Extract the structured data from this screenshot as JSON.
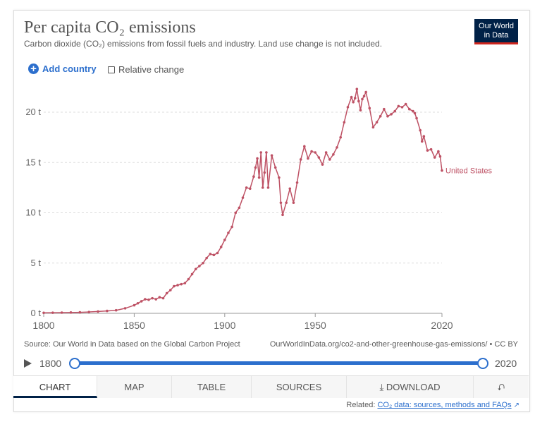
{
  "header": {
    "title": "Per capita CO₂ emissions",
    "subtitle": "Carbon dioxide (CO₂) emissions from fossil fuels and industry. Land use change is not included.",
    "logo_line1": "Our World",
    "logo_line2": "in Data"
  },
  "controls": {
    "add_country": "Add country",
    "relative_change": "Relative change"
  },
  "footer": {
    "source": "Source: Our World in Data based on the Global Carbon Project",
    "url": "OurWorldInData.org/co2-and-other-greenhouse-gas-emissions/ • CC BY",
    "related_prefix": "Related:",
    "related_link": "CO₂ data: sources, methods and FAQs"
  },
  "timeline": {
    "start": "1800",
    "end": "2020"
  },
  "tabs": [
    "Chart",
    "Map",
    "Table",
    "Sources",
    "Download",
    ""
  ],
  "colors": {
    "series": "#be5265",
    "accent": "#2c6fcd",
    "logo_bg": "#002147",
    "logo_bar": "#ce261e"
  },
  "chart_data": {
    "type": "line",
    "title": "Per capita CO₂ emissions",
    "xlim": [
      1800,
      2020
    ],
    "ylim": [
      0,
      21
    ],
    "x_ticks": [
      "1800",
      "1850",
      "1900",
      "1950",
      "2020"
    ],
    "x_tick_values": [
      1800,
      1850,
      1900,
      1950,
      2020
    ],
    "y_ticks": [
      "0 t",
      "5 t",
      "10 t",
      "15 t",
      "20 t"
    ],
    "y_tick_values": [
      0,
      5,
      10,
      15,
      20
    ],
    "grid": "horizontal dashed",
    "series": [
      {
        "name": "United States",
        "x": [
          1800,
          1805,
          1810,
          1815,
          1820,
          1825,
          1830,
          1835,
          1840,
          1845,
          1850,
          1852,
          1854,
          1856,
          1858,
          1860,
          1862,
          1864,
          1866,
          1868,
          1870,
          1872,
          1874,
          1876,
          1878,
          1880,
          1882,
          1884,
          1886,
          1888,
          1890,
          1892,
          1894,
          1896,
          1898,
          1900,
          1902,
          1904,
          1906,
          1908,
          1910,
          1912,
          1914,
          1916,
          1917,
          1918,
          1919,
          1920,
          1921,
          1922,
          1923,
          1924,
          1926,
          1928,
          1930,
          1931,
          1932,
          1934,
          1936,
          1938,
          1940,
          1942,
          1944,
          1946,
          1948,
          1950,
          1952,
          1954,
          1956,
          1958,
          1960,
          1962,
          1964,
          1966,
          1968,
          1970,
          1971,
          1972,
          1973,
          1974,
          1975,
          1976,
          1977,
          1978,
          1980,
          1982,
          1984,
          1986,
          1988,
          1990,
          1992,
          1994,
          1996,
          1998,
          2000,
          2002,
          2004,
          2005,
          2006,
          2008,
          2009,
          2010,
          2012,
          2014,
          2016,
          2018,
          2019,
          2020
        ],
        "y": [
          0.05,
          0.06,
          0.07,
          0.08,
          0.1,
          0.13,
          0.18,
          0.24,
          0.3,
          0.5,
          0.8,
          1.0,
          1.2,
          1.4,
          1.35,
          1.5,
          1.4,
          1.6,
          1.5,
          2.0,
          2.3,
          2.7,
          2.8,
          2.9,
          3.0,
          3.4,
          3.9,
          4.4,
          4.7,
          5.0,
          5.5,
          5.9,
          5.8,
          6.0,
          6.6,
          7.3,
          8.0,
          8.6,
          10.0,
          10.5,
          11.5,
          12.5,
          12.4,
          13.6,
          14.5,
          15.4,
          13.5,
          16.0,
          12.5,
          14.0,
          16.0,
          12.5,
          15.7,
          14.5,
          13.5,
          11.0,
          9.8,
          11.0,
          12.4,
          11.0,
          13.0,
          15.3,
          16.6,
          15.4,
          16.1,
          16.0,
          15.5,
          14.8,
          16.0,
          15.3,
          15.8,
          16.5,
          17.5,
          19.0,
          20.5,
          21.5,
          21.0,
          21.4,
          22.3,
          21.1,
          20.2,
          21.3,
          21.6,
          22.0,
          20.4,
          18.5,
          19.0,
          19.6,
          20.3,
          19.6,
          19.8,
          20.1,
          20.6,
          20.5,
          20.8,
          20.3,
          20.1,
          19.9,
          19.4,
          18.2,
          17.1,
          17.6,
          16.2,
          16.3,
          15.5,
          16.1,
          15.6,
          14.2
        ]
      }
    ]
  }
}
